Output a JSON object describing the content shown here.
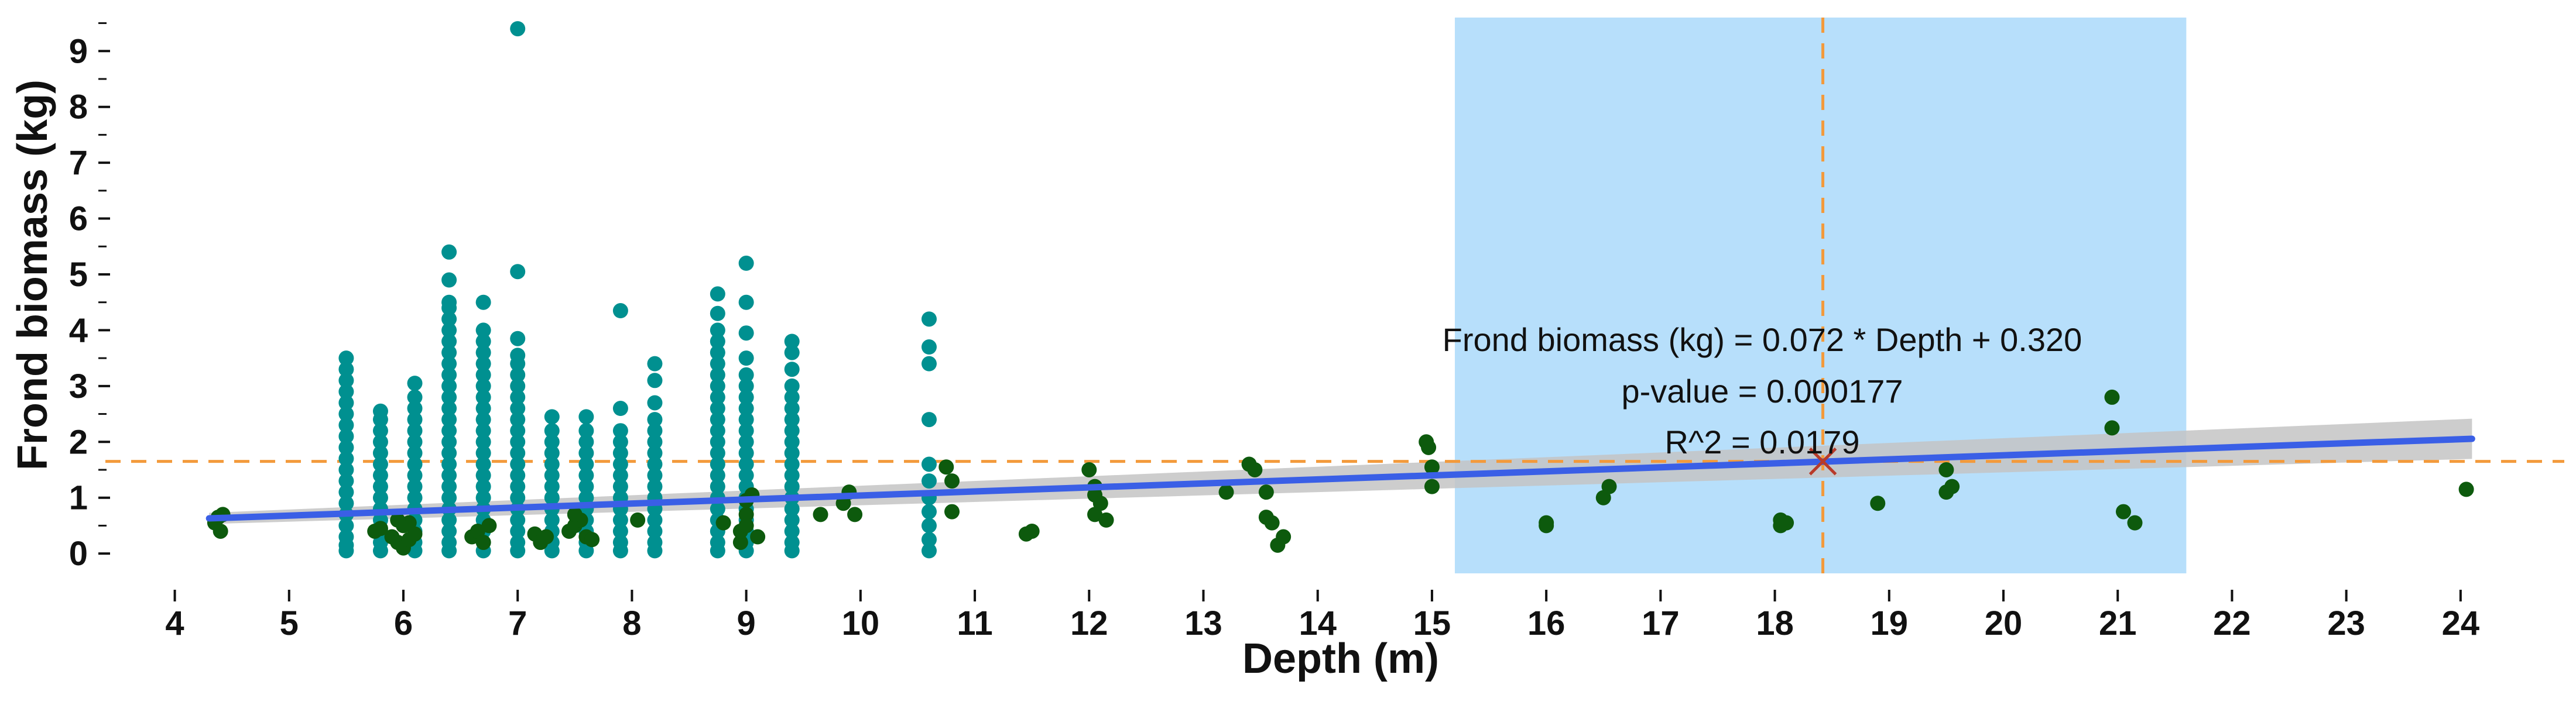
{
  "chart_data": {
    "type": "scatter",
    "xlabel": "Depth (m)",
    "ylabel": "Frond biomass (kg)",
    "xlim": [
      3.7,
      24.6
    ],
    "ylim": [
      -0.25,
      9.6
    ],
    "x_ticks": [
      4,
      5,
      6,
      7,
      8,
      9,
      10,
      11,
      12,
      13,
      14,
      15,
      16,
      17,
      18,
      19,
      20,
      21,
      22,
      23,
      24
    ],
    "y_ticks": [
      0,
      1,
      2,
      3,
      4,
      5,
      6,
      7,
      8,
      9
    ],
    "y_minor_ticks": [
      0.5,
      1.5,
      2.5,
      3.5,
      4.5,
      5.5,
      6.5,
      7.5,
      8.5,
      9.5
    ],
    "grid": false,
    "colors": {
      "teal_points": "#009090",
      "green_points": "#0d5a0d",
      "regression_line": "#3a5fe6",
      "confidence_band": "#c4c4c4",
      "highlight_band": "#b7dffb",
      "reference_lines": "#f39a3b",
      "marker": "#b83a2a"
    },
    "highlight_x_range": [
      15.2,
      21.6
    ],
    "reference_point": {
      "x": 18.42,
      "y": 1.65
    },
    "regression": {
      "slope": 0.072,
      "intercept": 0.32,
      "x_range": [
        4.3,
        24.1
      ],
      "ci_halfwidth_at_ends": [
        0.1,
        0.36
      ]
    },
    "annotations": [
      "Frond biomass (kg) = 0.072 * Depth + 0.320",
      "p-value = 0.000177",
      "R^2 = 0.0179"
    ],
    "series": [
      {
        "color": "teal",
        "columns": [
          {
            "x": 5.5,
            "y": [
              0.05,
              0.15,
              0.3,
              0.5,
              0.7,
              0.9,
              1.1,
              1.3,
              1.5,
              1.7,
              1.9,
              2.1,
              2.3,
              2.5,
              2.7,
              2.9,
              3.1,
              3.3,
              3.5
            ]
          },
          {
            "x": 5.8,
            "y": [
              0.05,
              0.2,
              0.4,
              0.6,
              0.8,
              1.0,
              1.2,
              1.4,
              1.6,
              1.8,
              2.0,
              2.2,
              2.4,
              2.55
            ]
          },
          {
            "x": 6.1,
            "y": [
              0.05,
              0.2,
              0.4,
              0.6,
              0.8,
              1.0,
              1.2,
              1.4,
              1.6,
              1.8,
              2.0,
              2.2,
              2.4,
              2.6,
              2.8,
              3.05
            ]
          },
          {
            "x": 6.4,
            "y": [
              0.05,
              0.2,
              0.4,
              0.6,
              0.8,
              1.0,
              1.2,
              1.4,
              1.6,
              1.8,
              2.0,
              2.2,
              2.4,
              2.6,
              2.8,
              3.0,
              3.2,
              3.4,
              3.6,
              3.8,
              4.0,
              4.2,
              4.4,
              4.5,
              4.9,
              5.4
            ]
          },
          {
            "x": 6.7,
            "y": [
              0.05,
              0.2,
              0.4,
              0.6,
              0.8,
              1.0,
              1.2,
              1.4,
              1.6,
              1.8,
              2.0,
              2.2,
              2.4,
              2.6,
              2.8,
              3.0,
              3.2,
              3.4,
              3.6,
              3.8,
              4.0,
              4.5
            ]
          },
          {
            "x": 7.0,
            "y": [
              0.05,
              0.2,
              0.4,
              0.6,
              0.8,
              1.0,
              1.2,
              1.4,
              1.6,
              1.8,
              2.0,
              2.2,
              2.4,
              2.6,
              2.8,
              3.0,
              3.2,
              3.4,
              3.55,
              3.85,
              5.05,
              9.4
            ]
          },
          {
            "x": 7.3,
            "y": [
              0.05,
              0.2,
              0.4,
              0.6,
              0.8,
              1.0,
              1.2,
              1.4,
              1.6,
              1.8,
              2.0,
              2.2,
              2.45
            ]
          },
          {
            "x": 7.6,
            "y": [
              0.05,
              0.2,
              0.4,
              0.6,
              0.8,
              1.0,
              1.2,
              1.4,
              1.6,
              1.8,
              2.0,
              2.2,
              2.45
            ]
          },
          {
            "x": 7.9,
            "y": [
              0.05,
              0.2,
              0.4,
              0.6,
              0.8,
              1.0,
              1.2,
              1.4,
              1.6,
              1.8,
              2.0,
              2.2,
              2.6,
              4.35
            ]
          },
          {
            "x": 8.2,
            "y": [
              0.05,
              0.2,
              0.4,
              0.6,
              0.8,
              1.0,
              1.2,
              1.4,
              1.6,
              1.8,
              2.0,
              2.2,
              2.4,
              2.7,
              3.1,
              3.4
            ]
          },
          {
            "x": 8.75,
            "y": [
              0.05,
              0.2,
              0.4,
              0.6,
              0.8,
              1.0,
              1.2,
              1.4,
              1.6,
              1.8,
              2.0,
              2.2,
              2.4,
              2.6,
              2.8,
              3.0,
              3.2,
              3.4,
              3.6,
              3.8,
              4.0,
              4.3,
              4.65
            ]
          },
          {
            "x": 9.0,
            "y": [
              0.05,
              0.2,
              0.4,
              0.6,
              0.8,
              1.0,
              1.2,
              1.4,
              1.6,
              1.8,
              2.0,
              2.2,
              2.4,
              2.6,
              2.8,
              3.0,
              3.2,
              3.5,
              3.95,
              4.5,
              5.2
            ]
          },
          {
            "x": 9.4,
            "y": [
              0.05,
              0.2,
              0.4,
              0.6,
              0.8,
              1.0,
              1.2,
              1.4,
              1.6,
              1.8,
              2.0,
              2.2,
              2.4,
              2.6,
              2.8,
              3.0,
              3.3,
              3.6,
              3.8
            ]
          },
          {
            "x": 10.6,
            "y": [
              0.05,
              0.25,
              0.5,
              0.75,
              1.0,
              1.3,
              1.6,
              2.4,
              3.4,
              3.7,
              4.2
            ]
          }
        ]
      },
      {
        "color": "green",
        "points": [
          [
            4.35,
            0.55
          ],
          [
            4.38,
            0.65
          ],
          [
            4.4,
            0.4
          ],
          [
            4.42,
            0.7
          ],
          [
            5.75,
            0.4
          ],
          [
            5.8,
            0.45
          ],
          [
            5.9,
            0.3
          ],
          [
            5.95,
            0.2
          ],
          [
            6.0,
            0.1
          ],
          [
            6.05,
            0.25
          ],
          [
            6.1,
            0.35
          ],
          [
            6.0,
            0.5
          ],
          [
            6.05,
            0.55
          ],
          [
            5.95,
            0.6
          ],
          [
            6.6,
            0.3
          ],
          [
            6.65,
            0.4
          ],
          [
            6.7,
            0.2
          ],
          [
            6.75,
            0.5
          ],
          [
            7.15,
            0.35
          ],
          [
            7.2,
            0.2
          ],
          [
            7.25,
            0.3
          ],
          [
            7.45,
            0.4
          ],
          [
            7.5,
            0.5
          ],
          [
            7.55,
            0.6
          ],
          [
            7.5,
            0.7
          ],
          [
            7.6,
            0.3
          ],
          [
            7.65,
            0.25
          ],
          [
            8.05,
            0.6
          ],
          [
            8.8,
            0.55
          ],
          [
            8.95,
            0.2
          ],
          [
            8.95,
            0.4
          ],
          [
            9.0,
            0.7
          ],
          [
            9.0,
            0.95
          ],
          [
            9.05,
            1.05
          ],
          [
            9.1,
            0.3
          ],
          [
            9.0,
            0.5
          ],
          [
            9.65,
            0.7
          ],
          [
            9.85,
            0.9
          ],
          [
            9.9,
            1.1
          ],
          [
            9.95,
            0.7
          ],
          [
            10.75,
            1.55
          ],
          [
            10.8,
            1.3
          ],
          [
            10.8,
            0.75
          ],
          [
            11.45,
            0.35
          ],
          [
            11.5,
            0.4
          ],
          [
            12.0,
            1.5
          ],
          [
            12.05,
            1.2
          ],
          [
            12.05,
            1.05
          ],
          [
            12.1,
            0.9
          ],
          [
            12.05,
            0.7
          ],
          [
            12.15,
            0.6
          ],
          [
            13.2,
            1.1
          ],
          [
            13.4,
            1.6
          ],
          [
            13.45,
            1.5
          ],
          [
            13.55,
            1.1
          ],
          [
            13.55,
            0.65
          ],
          [
            13.6,
            0.55
          ],
          [
            13.65,
            0.15
          ],
          [
            13.7,
            0.3
          ],
          [
            14.95,
            2.0
          ],
          [
            14.97,
            1.9
          ],
          [
            15.0,
            1.2
          ],
          [
            15.0,
            1.55
          ],
          [
            16.0,
            0.5
          ],
          [
            16.0,
            0.55
          ],
          [
            16.5,
            1.0
          ],
          [
            16.55,
            1.2
          ],
          [
            18.05,
            0.6
          ],
          [
            18.05,
            0.5
          ],
          [
            18.1,
            0.55
          ],
          [
            18.9,
            0.9
          ],
          [
            19.5,
            1.1
          ],
          [
            19.5,
            1.5
          ],
          [
            19.55,
            1.2
          ],
          [
            20.95,
            2.8
          ],
          [
            20.95,
            2.25
          ],
          [
            21.05,
            0.75
          ],
          [
            21.15,
            0.55
          ],
          [
            24.05,
            1.15
          ]
        ]
      }
    ]
  }
}
